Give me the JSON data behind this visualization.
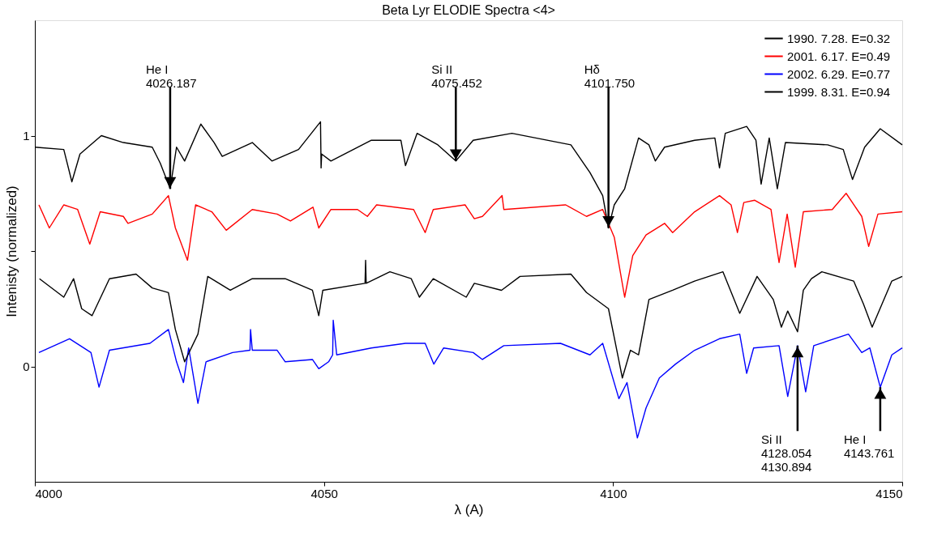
{
  "chart_data": {
    "type": "line",
    "title": "Beta Lyr  ELODIE Spectra <4>",
    "xlabel": "λ (A)",
    "ylabel": "Intenisty (normalized)",
    "xlim": [
      4000,
      4150
    ],
    "xticks": [
      4000,
      4050,
      4100,
      4150
    ],
    "ylim": [
      -0.5,
      1.5
    ],
    "yticks": [
      0,
      {
        "value": 0.5,
        "label": null
      },
      1
    ],
    "grid": false,
    "legend": "top right",
    "annotations": [
      {
        "text": "He I\n4026.187",
        "x": 4023.4,
        "y": 0.77
      },
      {
        "text": "Si II\n4075.452",
        "x": 4072.8,
        "y": 0.89
      },
      {
        "text": "Hδ\n4101.750",
        "x": 4099.2,
        "y": 0.6
      },
      {
        "text": "Si II\n4128.054\n4130.894",
        "x": 4131.9,
        "y": 0.09
      },
      {
        "text": "He I\n4143.761",
        "x": 4146.2,
        "y": -0.09
      }
    ],
    "series": [
      {
        "name": "1990. 7.28.  E=0.32",
        "color": "#000000",
        "x": [
          4000,
          4005,
          4006.4,
          4007.8,
          4011.5,
          4015.3,
          4020.3,
          4021.7,
          4023.4,
          4024.5,
          4025.9,
          4028.7,
          4031.0,
          4032.4,
          4037.6,
          4041.0,
          4045.6,
          4049.4,
          4049.5,
          4049.6,
          4051.2,
          4058.2,
          4063.3,
          4064.1,
          4066.1,
          4069.7,
          4072.8,
          4075.8,
          4082.5,
          4092.7,
          4096.0,
          4098.2,
          4099.2,
          4100.2,
          4102.0,
          4104.4,
          4106.2,
          4107.3,
          4108.9,
          4114.1,
          4117.6,
          4118.4,
          4119.4,
          4123.1,
          4124.7,
          4125.6,
          4127.0,
          4128.4,
          4129.8,
          4137.1,
          4139.8,
          4141.4,
          4143.5,
          4146.2,
          4150
        ],
        "values": [
          0.95,
          0.94,
          0.8,
          0.92,
          1.0,
          0.97,
          0.95,
          0.88,
          0.77,
          0.95,
          0.89,
          1.05,
          0.97,
          0.91,
          0.97,
          0.89,
          0.94,
          1.06,
          0.86,
          0.92,
          0.89,
          0.98,
          0.98,
          0.87,
          1.01,
          0.96,
          0.89,
          0.98,
          1.01,
          0.96,
          0.84,
          0.74,
          0.6,
          0.7,
          0.77,
          0.99,
          0.96,
          0.89,
          0.95,
          0.98,
          0.99,
          0.86,
          1.01,
          1.04,
          0.98,
          0.79,
          0.99,
          0.77,
          0.97,
          0.96,
          0.94,
          0.81,
          0.95,
          1.03,
          0.96
        ]
      },
      {
        "name": "2001. 6.17.  E=0.49",
        "color": "#ff0000",
        "x": [
          4000.7,
          4002.5,
          4005,
          4007.4,
          4009.5,
          4011.3,
          4015.3,
          4016.1,
          4020.3,
          4023.1,
          4024.3,
          4026.4,
          4027.8,
          4030.6,
          4033.1,
          4037.6,
          4041.9,
          4044.2,
          4048.1,
          4049.1,
          4051.2,
          4055.8,
          4057.5,
          4059.1,
          4065.5,
          4067.5,
          4068.9,
          4074.4,
          4076.0,
          4077.4,
          4080.8,
          4081.1,
          4091.8,
          4095.4,
          4098.2,
          4100.2,
          4102.0,
          4103.4,
          4105.7,
          4108.9,
          4110.3,
          4114.1,
          4118.4,
          4120.4,
          4121.5,
          4122.6,
          4124.5,
          4127.3,
          4128.7,
          4130.1,
          4131.5,
          4132.9,
          4137.9,
          4140.3,
          4143.0,
          4144.2,
          4145.8,
          4150
        ],
        "values": [
          0.7,
          0.6,
          0.7,
          0.68,
          0.53,
          0.67,
          0.65,
          0.62,
          0.66,
          0.74,
          0.6,
          0.46,
          0.7,
          0.67,
          0.59,
          0.68,
          0.66,
          0.63,
          0.69,
          0.6,
          0.68,
          0.68,
          0.65,
          0.7,
          0.68,
          0.58,
          0.68,
          0.7,
          0.64,
          0.65,
          0.74,
          0.68,
          0.7,
          0.65,
          0.68,
          0.56,
          0.3,
          0.48,
          0.57,
          0.62,
          0.58,
          0.67,
          0.74,
          0.7,
          0.58,
          0.71,
          0.72,
          0.68,
          0.45,
          0.66,
          0.43,
          0.67,
          0.68,
          0.75,
          0.65,
          0.52,
          0.66,
          0.67
        ]
      },
      {
        "name": "2002. 6.29.  E=0.77",
        "color": "#0000ff",
        "x": [
          4000.7,
          4006,
          4009.7,
          4011.1,
          4012.9,
          4019.9,
          4023.1,
          4024.5,
          4025.7,
          4026.6,
          4028.2,
          4029.6,
          4034.2,
          4037.2,
          4037.3,
          4037.6,
          4041.9,
          4043.3,
          4048.0,
          4049.1,
          4050.8,
          4051.5,
          4051.6,
          4052.2,
          4058.2,
          4064.1,
          4067.5,
          4069.0,
          4070.7,
          4075.8,
          4077.4,
          4081.1,
          4090.9,
          4096.0,
          4098.2,
          4101.0,
          4102.4,
          4104.2,
          4105.7,
          4108.0,
          4110.8,
          4114.1,
          4118.4,
          4121.9,
          4123.1,
          4124.3,
          4128.7,
          4130.2,
          4131.9,
          4133.3,
          4134.7,
          4140.7,
          4143.0,
          4144.4,
          4146.2,
          4148.2,
          4150
        ],
        "values": [
          0.06,
          0.12,
          0.06,
          -0.09,
          0.07,
          0.1,
          0.16,
          0.02,
          -0.07,
          0.08,
          -0.16,
          0.02,
          0.06,
          0.07,
          0.16,
          0.07,
          0.07,
          0.02,
          0.03,
          -0.01,
          0.02,
          0.05,
          0.2,
          0.05,
          0.08,
          0.1,
          0.1,
          0.01,
          0.08,
          0.06,
          0.03,
          0.09,
          0.1,
          0.05,
          0.1,
          -0.14,
          -0.07,
          -0.31,
          -0.18,
          -0.05,
          0.01,
          0.07,
          0.12,
          0.14,
          -0.03,
          0.08,
          0.09,
          -0.13,
          0.09,
          -0.11,
          0.09,
          0.14,
          0.06,
          0.08,
          -0.09,
          0.05,
          0.08
        ]
      },
      {
        "name": "1999. 8.31.  E=0.94",
        "color": "#000000",
        "x": [
          4000.8,
          4005,
          4006.7,
          4008.1,
          4009.9,
          4012.9,
          4017.5,
          4020.3,
          4023.1,
          4024.3,
          4025.9,
          4028.2,
          4029.9,
          4033.8,
          4037.6,
          4043.3,
          4048.0,
          4049.1,
          4049.8,
          4057.1,
          4057.2,
          4057.3,
          4061.4,
          4065.1,
          4066.5,
          4068.9,
          4074.6,
          4076.0,
          4080.7,
          4083.9,
          4092.7,
          4095.4,
          4099.2,
          4101.6,
          4103.0,
          4104.4,
          4106.2,
          4110.3,
          4114.1,
          4119.0,
          4121.9,
          4124.9,
          4127.7,
          4129.1,
          4130.2,
          4131.9,
          4132.9,
          4134.3,
          4136.1,
          4141.6,
          4143.3,
          4144.8,
          4148.2,
          4150
        ],
        "values": [
          0.38,
          0.3,
          0.38,
          0.25,
          0.22,
          0.38,
          0.4,
          0.34,
          0.32,
          0.16,
          0.02,
          0.14,
          0.39,
          0.33,
          0.38,
          0.38,
          0.33,
          0.22,
          0.33,
          0.36,
          0.46,
          0.36,
          0.41,
          0.38,
          0.3,
          0.38,
          0.3,
          0.36,
          0.33,
          0.39,
          0.4,
          0.32,
          0.25,
          -0.05,
          0.07,
          0.05,
          0.29,
          0.33,
          0.37,
          0.41,
          0.23,
          0.39,
          0.29,
          0.17,
          0.24,
          0.15,
          0.33,
          0.38,
          0.41,
          0.37,
          0.27,
          0.17,
          0.37,
          0.39
        ]
      }
    ]
  }
}
